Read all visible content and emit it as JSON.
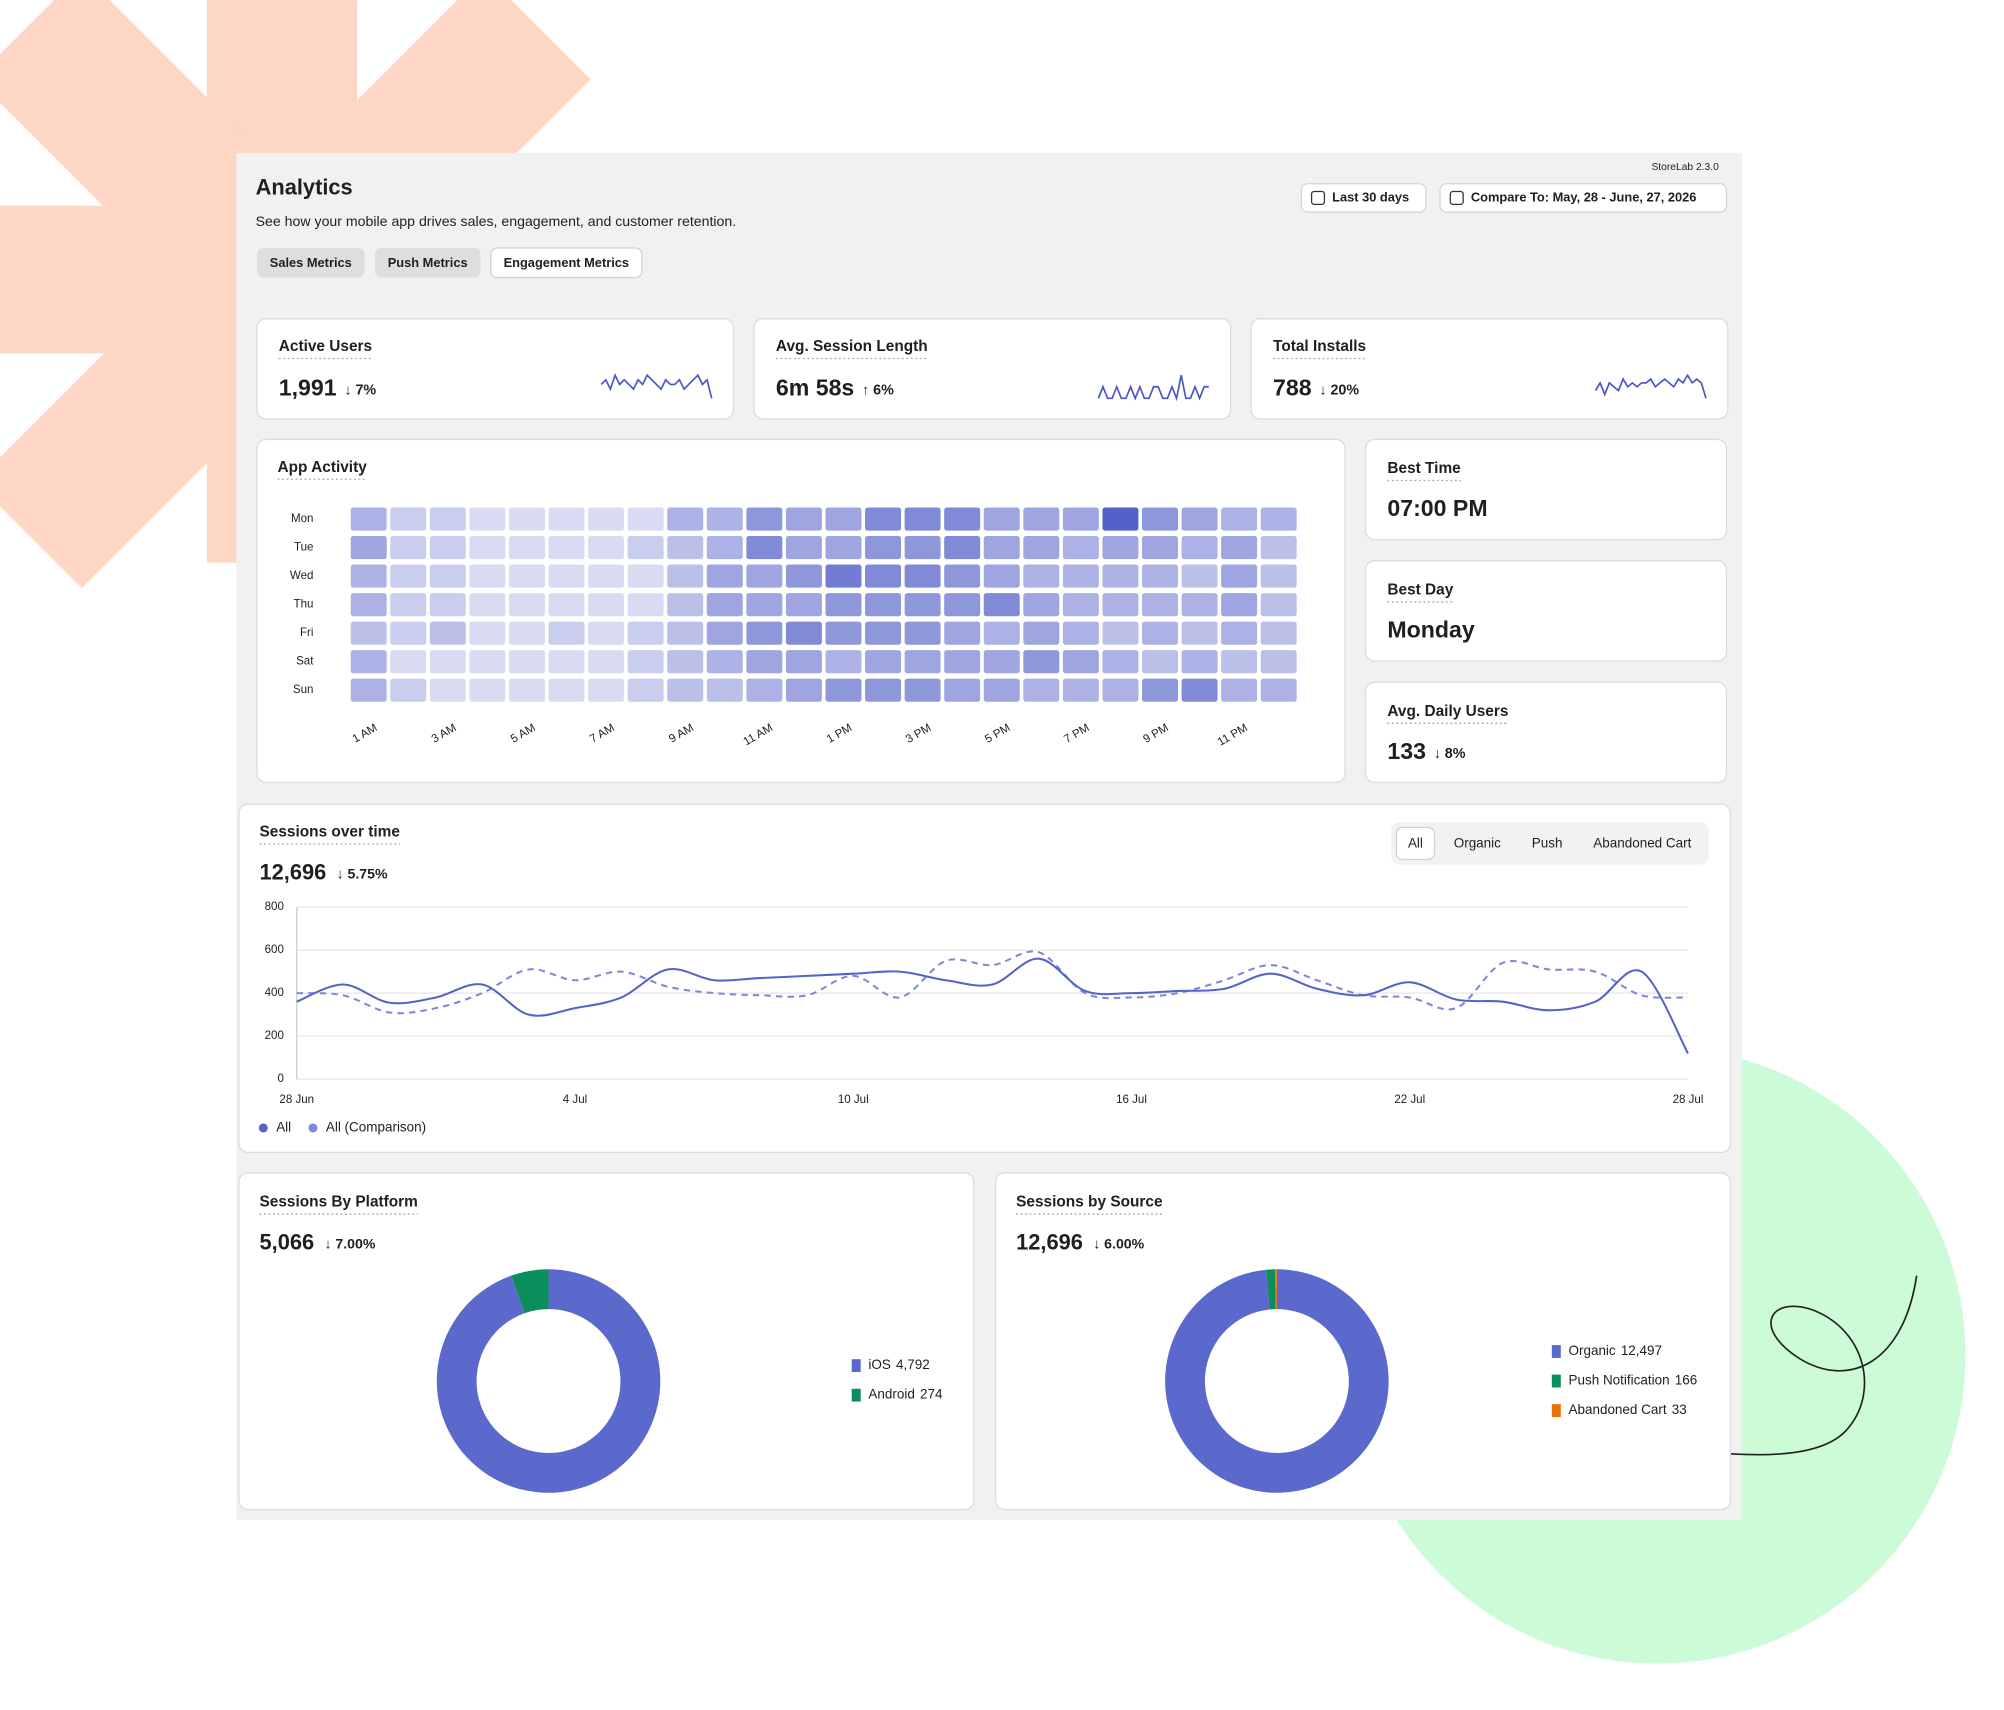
{
  "header": {
    "version": "StoreLab 2.3.0",
    "title": "Analytics",
    "subtitle": "See how your mobile app drives sales, engagement, and customer retention.",
    "date_range": "Last 30 days",
    "compare": "Compare To: May, 28 - June, 27, 2026"
  },
  "tabs": {
    "items": [
      "Sales Metrics",
      "Push Metrics",
      "Engagement Metrics"
    ],
    "active": 2
  },
  "kpis": [
    {
      "label": "Active Users",
      "value": "1,991",
      "change": "↓ 7%",
      "change_color": "#d32f2f",
      "sparkline": [
        5,
        6,
        4,
        7,
        5,
        6,
        5,
        4,
        6,
        5,
        7,
        6,
        5,
        4,
        6,
        5,
        5,
        6,
        4,
        5,
        6,
        7,
        5,
        6,
        2
      ]
    },
    {
      "label": "Avg. Session Length",
      "value": "6m 58s",
      "change": "↑ 6%",
      "change_color": "#1a8a4a",
      "sparkline": [
        4,
        5,
        4,
        4,
        5,
        4,
        4,
        5,
        4,
        5,
        4,
        4,
        5,
        5,
        4,
        4,
        5,
        4,
        6,
        4,
        4,
        5,
        4,
        5,
        5
      ]
    },
    {
      "label": "Total Installs",
      "value": "788",
      "change": "↓ 20%",
      "change_color": "#d32f2f",
      "sparkline": [
        4,
        6,
        3,
        6,
        5,
        4,
        7,
        5,
        6,
        5,
        6,
        6,
        7,
        5,
        6,
        7,
        6,
        5,
        7,
        6,
        8,
        6,
        7,
        6,
        2
      ]
    }
  ],
  "app_activity": {
    "title": "App Activity",
    "rows": [
      "Mon",
      "Tue",
      "Wed",
      "Thu",
      "Fri",
      "Sat",
      "Sun"
    ],
    "columns": [
      "1 AM",
      null,
      "3 AM",
      null,
      "5 AM",
      null,
      "7 AM",
      null,
      "9 AM",
      null,
      "11 AM",
      null,
      "1 PM",
      null,
      "3 PM",
      null,
      "5 PM",
      null,
      "7 PM",
      null,
      "9 PM",
      null,
      "11 PM",
      null
    ],
    "values": [
      [
        4,
        2,
        2,
        1,
        1,
        1,
        1,
        1,
        4,
        4,
        6,
        5,
        5,
        7,
        7,
        7,
        5,
        5,
        5,
        10,
        6,
        5,
        4,
        4
      ],
      [
        5,
        2,
        2,
        1,
        1,
        1,
        1,
        2,
        3,
        4,
        7,
        5,
        5,
        6,
        6,
        7,
        5,
        5,
        4,
        5,
        5,
        4,
        5,
        3
      ],
      [
        4,
        2,
        2,
        1,
        1,
        1,
        1,
        1,
        3,
        5,
        5,
        6,
        8,
        7,
        7,
        6,
        5,
        4,
        4,
        4,
        4,
        3,
        5,
        3
      ],
      [
        4,
        2,
        2,
        1,
        1,
        1,
        1,
        1,
        3,
        5,
        5,
        5,
        6,
        6,
        6,
        6,
        7,
        5,
        4,
        4,
        4,
        4,
        5,
        3
      ],
      [
        3,
        2,
        3,
        1,
        1,
        2,
        1,
        2,
        3,
        5,
        6,
        7,
        6,
        6,
        6,
        5,
        4,
        5,
        4,
        3,
        4,
        3,
        4,
        3
      ],
      [
        4,
        1,
        1,
        1,
        1,
        1,
        1,
        2,
        3,
        4,
        5,
        5,
        4,
        5,
        5,
        5,
        5,
        6,
        5,
        4,
        3,
        4,
        3,
        3
      ],
      [
        4,
        2,
        1,
        1,
        1,
        1,
        1,
        2,
        3,
        3,
        4,
        5,
        6,
        6,
        6,
        5,
        5,
        4,
        4,
        4,
        6,
        7,
        4,
        4
      ]
    ],
    "vmax": 10,
    "color_low": "#e6e8f7",
    "color_high": "#5561c9"
  },
  "highlights": [
    {
      "label": "Best Time",
      "value": "07:00 PM"
    },
    {
      "label": "Best Day",
      "value": "Monday"
    },
    {
      "label": "Avg. Daily Users",
      "value": "133",
      "change": "↓ 8%",
      "change_color": "#d32f2f"
    }
  ],
  "sessions": {
    "title": "Sessions over time",
    "total": "12,696",
    "change": "↓ 5.75%",
    "change_color": "#d32f2f",
    "filters": [
      "All",
      "Organic",
      "Push",
      "Abandoned Cart"
    ],
    "active_filter": 0,
    "chart_data": {
      "type": "line",
      "x": [
        "28 Jun",
        null,
        null,
        null,
        null,
        null,
        "4 Jul",
        null,
        null,
        null,
        null,
        null,
        "10 Jul",
        null,
        null,
        null,
        null,
        null,
        "16 Jul",
        null,
        null,
        null,
        null,
        null,
        "22 Jul",
        null,
        null,
        null,
        null,
        null,
        "28 Jul"
      ],
      "series": [
        {
          "name": "All",
          "color": "#5563c9",
          "dashed": false,
          "values": [
            360,
            440,
            355,
            380,
            440,
            300,
            330,
            380,
            510,
            460,
            470,
            480,
            490,
            500,
            460,
            440,
            560,
            410,
            400,
            410,
            420,
            490,
            420,
            390,
            450,
            370,
            360,
            320,
            360,
            500,
            120
          ]
        },
        {
          "name": "All (Comparison)",
          "color": "#7d88d9",
          "dashed": true,
          "values": [
            400,
            390,
            310,
            330,
            400,
            510,
            460,
            500,
            430,
            400,
            390,
            390,
            480,
            380,
            550,
            530,
            590,
            400,
            380,
            400,
            460,
            530,
            460,
            390,
            380,
            330,
            540,
            510,
            500,
            390,
            380
          ]
        }
      ],
      "ylim": [
        0,
        800
      ],
      "yticks": [
        0,
        200,
        400,
        600,
        800
      ],
      "grid": true
    }
  },
  "platform": {
    "title": "Sessions By Platform",
    "total": "5,066",
    "change": "↓ 7.00%",
    "change_color": "#d32f2f",
    "chart_data": {
      "type": "donut",
      "categories": [
        "iOS",
        "Android"
      ],
      "values": [
        4792,
        274
      ],
      "value_labels": [
        "4,792",
        "274"
      ],
      "colors": [
        "#5a69cb",
        "#0a8f5c"
      ]
    }
  },
  "source": {
    "title": "Sessions by Source",
    "total": "12,696",
    "change": "↓ 6.00%",
    "change_color": "#d32f2f",
    "chart_data": {
      "type": "donut",
      "categories": [
        "Organic",
        "Push Notification",
        "Abandoned Cart"
      ],
      "values": [
        12497,
        166,
        33
      ],
      "value_labels": [
        "12,497",
        "166",
        "33"
      ],
      "colors": [
        "#5a69cb",
        "#0a8f5c",
        "#e8730c"
      ]
    }
  }
}
